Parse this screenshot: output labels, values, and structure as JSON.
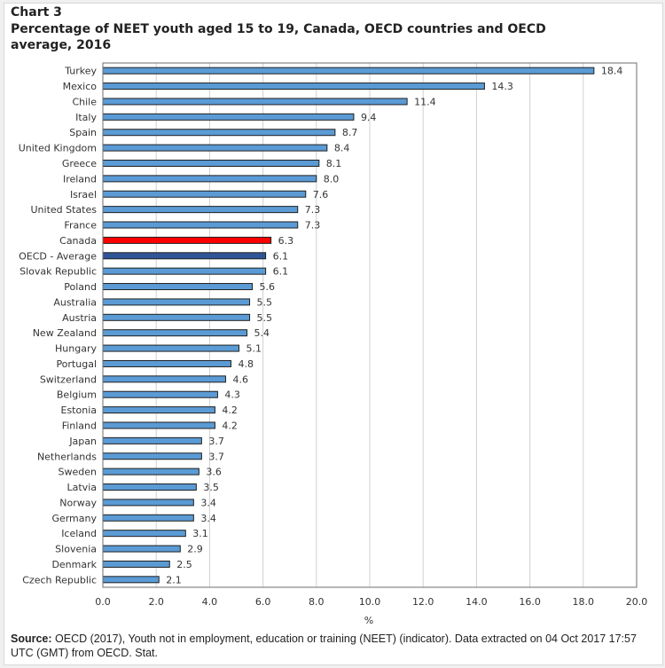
{
  "header": {
    "label": "Chart 3",
    "title": "Percentage of NEET youth aged 15 to 19, Canada, OECD countries and OECD average, 2016"
  },
  "source": {
    "label": "Source:",
    "text": " OECD (2017), Youth not in employment, education or training (NEET) (indicator). Data extracted on 04 Oct 2017 17:57 UTC (GMT) from OECD. Stat."
  },
  "colors": {
    "default_bar": "#5b9bd5",
    "canada_bar": "#ff0000",
    "oecd_average_bar": "#2f5597",
    "bar_outline": "#1f1f1f",
    "gridline": "#d0d0d0"
  },
  "chart_data": {
    "type": "bar",
    "orientation": "horizontal",
    "title": "Percentage of NEET youth aged 15 to 19, Canada, OECD countries and OECD average, 2016",
    "xlabel": "%",
    "ylabel": "",
    "xlim": [
      0,
      20
    ],
    "xticks": [
      "0.0",
      "2.0",
      "4.0",
      "6.0",
      "8.0",
      "10.0",
      "12.0",
      "14.0",
      "16.0",
      "18.0",
      "20.0"
    ],
    "grid": true,
    "legend": "none",
    "categories": [
      "Turkey",
      "Mexico",
      "Chile",
      "Italy",
      "Spain",
      "United Kingdom",
      "Greece",
      "Ireland",
      "Israel",
      "United States",
      "France",
      "Canada",
      "OECD - Average",
      "Slovak Republic",
      "Poland",
      "Australia",
      "Austria",
      "New Zealand",
      "Hungary",
      "Portugal",
      "Switzerland",
      "Belgium",
      "Estonia",
      "Finland",
      "Japan",
      "Netherlands",
      "Sweden",
      "Latvia",
      "Norway",
      "Germany",
      "Iceland",
      "Slovenia",
      "Denmark",
      "Czech Republic"
    ],
    "values": [
      18.4,
      14.3,
      11.4,
      9.4,
      8.7,
      8.4,
      8.1,
      8.0,
      7.6,
      7.3,
      7.3,
      6.3,
      6.1,
      6.1,
      5.6,
      5.5,
      5.5,
      5.4,
      5.1,
      4.8,
      4.6,
      4.3,
      4.2,
      4.2,
      3.7,
      3.7,
      3.6,
      3.5,
      3.4,
      3.4,
      3.1,
      2.9,
      2.5,
      2.1
    ],
    "highlights": {
      "Canada": "canada_bar",
      "OECD - Average": "oecd_average_bar"
    }
  }
}
